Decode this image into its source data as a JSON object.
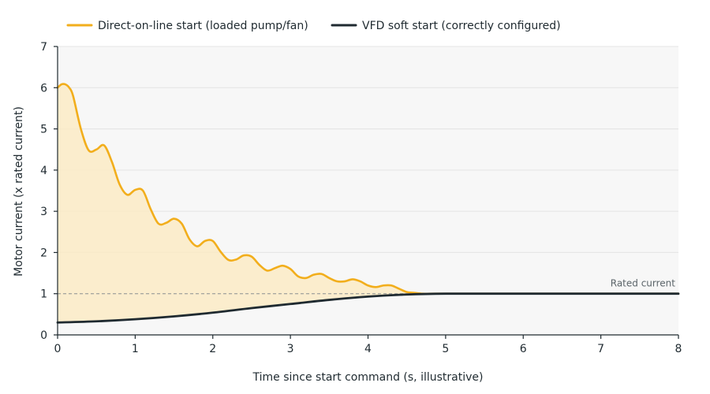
{
  "chart_data": {
    "type": "line",
    "xlabel": "Time since start command (s, illustrative)",
    "ylabel": "Motor current (x rated current)",
    "xlim": [
      0,
      8
    ],
    "ylim": [
      0,
      7
    ],
    "x_ticks": [
      0,
      1,
      2,
      3,
      4,
      5,
      6,
      7,
      8
    ],
    "y_ticks": [
      0,
      1,
      2,
      3,
      4,
      5,
      6,
      7
    ],
    "grid": "horizontal",
    "legend_position": "top-left",
    "reference_line": {
      "y": 1,
      "label": "Rated current"
    },
    "series": [
      {
        "name": "Direct-on-line start (loaded pump/fan)",
        "color": "#f2ae1c",
        "fill": "#fcebc6",
        "x": [
          0,
          0.05,
          0.1,
          0.15,
          0.2,
          0.3,
          0.4,
          0.5,
          0.6,
          0.7,
          0.8,
          0.9,
          1.0,
          1.1,
          1.2,
          1.3,
          1.4,
          1.5,
          1.6,
          1.7,
          1.8,
          1.9,
          2.0,
          2.1,
          2.2,
          2.3,
          2.4,
          2.5,
          2.6,
          2.7,
          2.8,
          2.9,
          3.0,
          3.1,
          3.2,
          3.3,
          3.4,
          3.5,
          3.6,
          3.7,
          3.8,
          3.9,
          4.0,
          4.1,
          4.2,
          4.3,
          4.4,
          4.5,
          4.6,
          4.7,
          4.8,
          4.9,
          5.0,
          6,
          7,
          8
        ],
        "values": [
          6.0,
          6.08,
          6.08,
          6.0,
          5.8,
          5.0,
          4.48,
          4.5,
          4.6,
          4.2,
          3.65,
          3.4,
          3.52,
          3.5,
          3.05,
          2.7,
          2.72,
          2.82,
          2.7,
          2.32,
          2.15,
          2.28,
          2.28,
          2.02,
          1.82,
          1.83,
          1.93,
          1.9,
          1.7,
          1.56,
          1.62,
          1.68,
          1.6,
          1.42,
          1.38,
          1.46,
          1.48,
          1.38,
          1.3,
          1.3,
          1.35,
          1.3,
          1.2,
          1.16,
          1.2,
          1.2,
          1.12,
          1.04,
          1.02,
          1.0,
          1.0,
          1.0,
          1.0,
          1.0,
          1.0,
          1.0
        ]
      },
      {
        "name": "VFD soft start (correctly configured)",
        "color": "#1f2a30",
        "x": [
          0,
          0.5,
          1.0,
          1.5,
          2.0,
          2.5,
          3.0,
          3.5,
          4.0,
          4.5,
          5.0,
          6,
          7,
          8
        ],
        "values": [
          0.3,
          0.33,
          0.38,
          0.45,
          0.54,
          0.65,
          0.75,
          0.85,
          0.93,
          0.98,
          1.0,
          1.0,
          1.0,
          1.0
        ]
      }
    ]
  }
}
